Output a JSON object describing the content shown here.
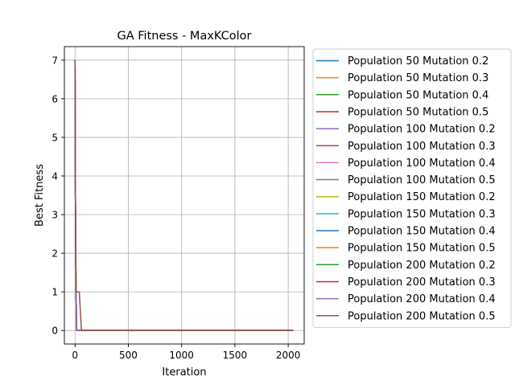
{
  "chart_data": {
    "type": "line",
    "title": "GA Fitness - MaxKColor",
    "xlabel": "Iteration",
    "ylabel": "Best Fitness",
    "xlim": [
      -100,
      2150
    ],
    "ylim": [
      -0.35,
      7.35
    ],
    "xticks": [
      0,
      500,
      1000,
      1500,
      2000
    ],
    "yticks": [
      0,
      1,
      2,
      3,
      4,
      5,
      6,
      7
    ],
    "grid": true,
    "legend_position": "outside-right",
    "series": [
      {
        "name": "Population 50 Mutation 0.2",
        "color": "#1f77b4",
        "x": [
          0,
          3,
          6,
          10,
          14,
          2048
        ],
        "y": [
          7,
          4,
          2,
          1,
          0,
          0
        ]
      },
      {
        "name": "Population 50 Mutation 0.3",
        "color": "#ff7f0e",
        "x": [
          0,
          3,
          6,
          10,
          16,
          2048
        ],
        "y": [
          7,
          4,
          2,
          1,
          0,
          0
        ]
      },
      {
        "name": "Population 50 Mutation 0.4",
        "color": "#2ca02c",
        "x": [
          0,
          3,
          6,
          10,
          14,
          2048
        ],
        "y": [
          7,
          4,
          2,
          1,
          0,
          0
        ]
      },
      {
        "name": "Population 50 Mutation 0.5",
        "color": "#d62728",
        "x": [
          0,
          3,
          6,
          10,
          16,
          2048
        ],
        "y": [
          7,
          4,
          2,
          1,
          0,
          0
        ]
      },
      {
        "name": "Population 100 Mutation 0.2",
        "color": "#9467bd",
        "x": [
          0,
          3,
          6,
          10,
          15,
          2048
        ],
        "y": [
          7,
          4,
          2,
          1,
          0,
          0
        ]
      },
      {
        "name": "Population 100 Mutation 0.3",
        "color": "#8c564b",
        "x": [
          0,
          3,
          6,
          10,
          15,
          2048
        ],
        "y": [
          7,
          4,
          2,
          1,
          0,
          0
        ]
      },
      {
        "name": "Population 100 Mutation 0.4",
        "color": "#e377c2",
        "x": [
          0,
          3,
          6,
          10,
          15,
          2048
        ],
        "y": [
          7,
          4,
          2,
          1,
          0,
          0
        ]
      },
      {
        "name": "Population 100 Mutation 0.5",
        "color": "#7f7f7f",
        "x": [
          0,
          3,
          6,
          10,
          15,
          2048
        ],
        "y": [
          7,
          4,
          2,
          1,
          0,
          0
        ]
      },
      {
        "name": "Population 150 Mutation 0.2",
        "color": "#bcbd22",
        "x": [
          0,
          3,
          6,
          10,
          15,
          2048
        ],
        "y": [
          7,
          4,
          2,
          1,
          0,
          0
        ]
      },
      {
        "name": "Population 150 Mutation 0.3",
        "color": "#17becf",
        "x": [
          0,
          3,
          6,
          10,
          15,
          2048
        ],
        "y": [
          7,
          4,
          2,
          1,
          0,
          0
        ]
      },
      {
        "name": "Population 150 Mutation 0.4",
        "color": "#1f77b4",
        "x": [
          0,
          3,
          6,
          10,
          15,
          2048
        ],
        "y": [
          7,
          4,
          2,
          1,
          0,
          0
        ]
      },
      {
        "name": "Population 150 Mutation 0.5",
        "color": "#ff7f0e",
        "x": [
          0,
          3,
          6,
          10,
          15,
          2048
        ],
        "y": [
          7,
          4,
          2,
          1,
          0,
          0
        ]
      },
      {
        "name": "Population 200 Mutation 0.2",
        "color": "#2ca02c",
        "x": [
          0,
          3,
          6,
          10,
          15,
          2048
        ],
        "y": [
          7,
          4,
          2,
          1,
          0,
          0
        ]
      },
      {
        "name": "Population 200 Mutation 0.3",
        "color": "#d62728",
        "x": [
          0,
          3,
          6,
          10,
          15,
          2048
        ],
        "y": [
          7,
          4,
          2,
          1,
          0,
          0
        ]
      },
      {
        "name": "Population 200 Mutation 0.4",
        "color": "#9467bd",
        "x": [
          0,
          3,
          6,
          10,
          15,
          2048
        ],
        "y": [
          7,
          4,
          2,
          1,
          0,
          0
        ]
      },
      {
        "name": "Population 200 Mutation 0.5",
        "color": "#8c564b",
        "x": [
          0,
          2,
          4,
          7,
          10,
          20,
          28,
          40,
          60,
          2048
        ],
        "y": [
          7,
          5,
          3,
          2,
          1,
          1,
          1,
          1,
          0,
          0
        ]
      }
    ]
  }
}
